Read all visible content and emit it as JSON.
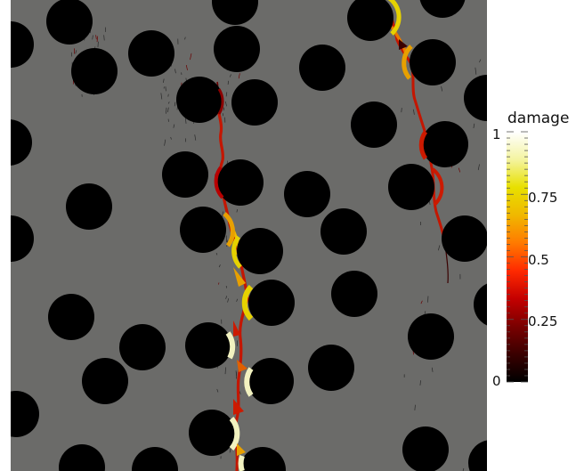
{
  "colorbar": {
    "title": "damage",
    "tick_labels": [
      "0",
      "0.25",
      "0.5",
      "0.75",
      "1"
    ],
    "tick_values": [
      0,
      0.25,
      0.5,
      0.75,
      1
    ],
    "range": [
      0,
      1
    ],
    "colormap": [
      "#000000",
      "#3a0000",
      "#7a0000",
      "#c40000",
      "#ff2a00",
      "#ff7a00",
      "#f0b800",
      "#e8e000",
      "#f4f4a0",
      "#ffffff"
    ]
  },
  "scene": {
    "matrix_color": "#6b6b69",
    "inclusion_color": "#000000",
    "crack_colors": [
      "#8b0000",
      "#cc1a00",
      "#e06000",
      "#e8a000",
      "#e6d200",
      "#f2f2c0"
    ]
  }
}
